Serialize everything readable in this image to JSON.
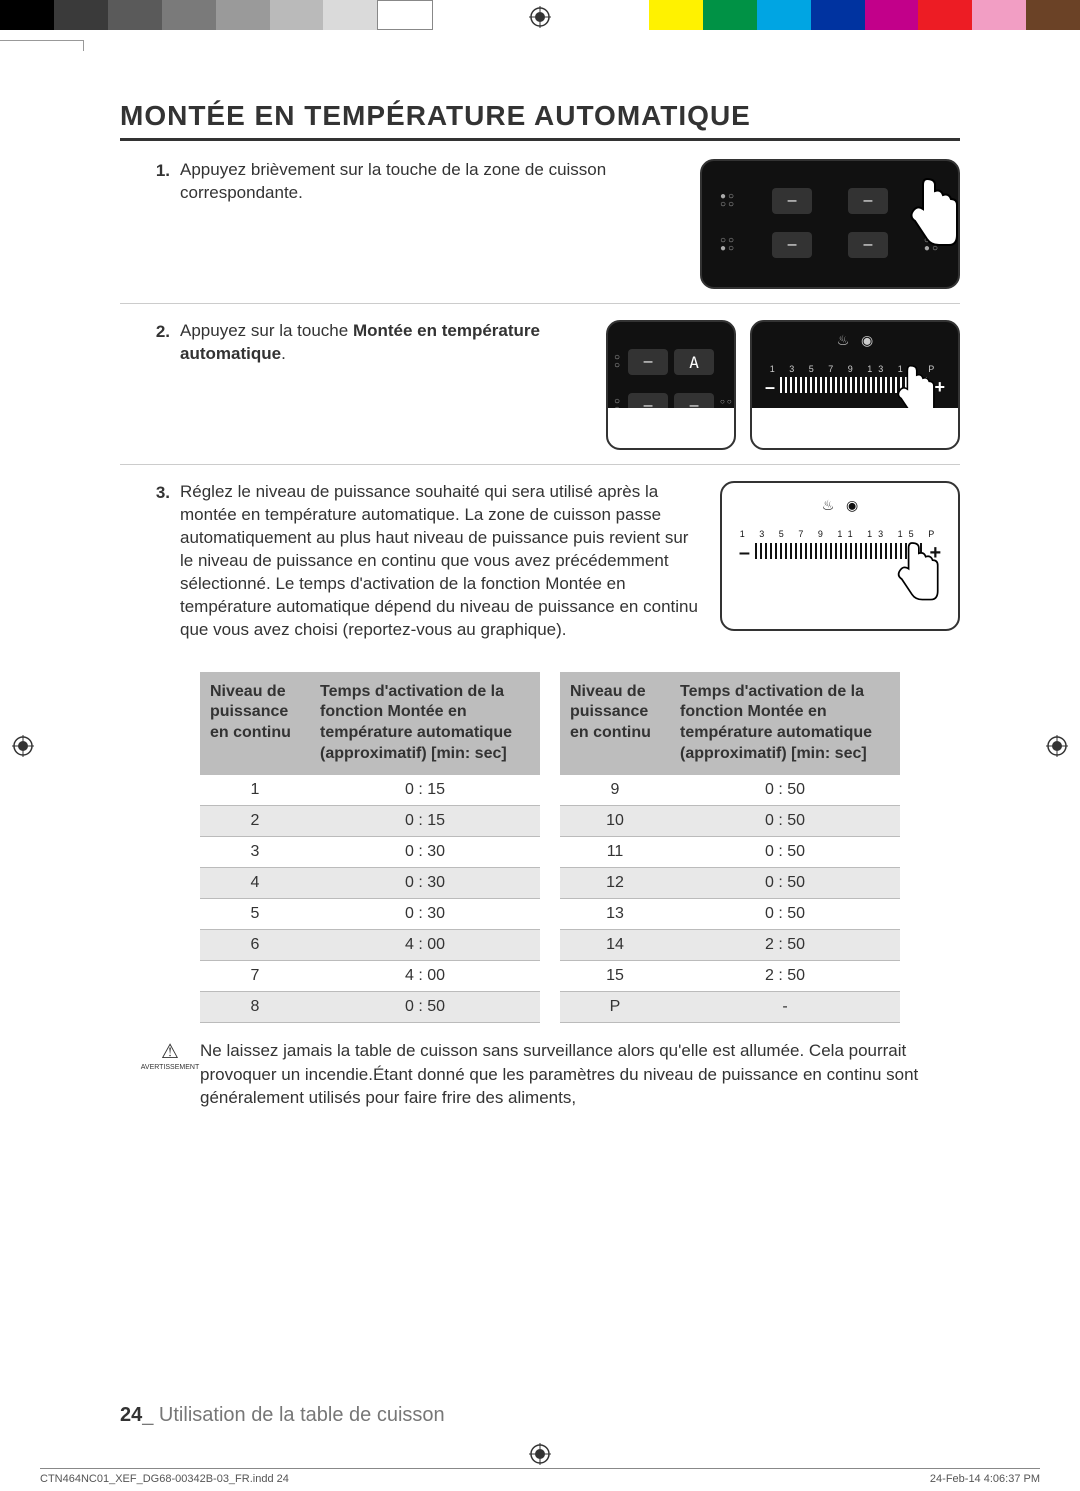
{
  "colorbar": {
    "swatches": [
      {
        "c": "#000000"
      },
      {
        "c": "#3a3a3a"
      },
      {
        "c": "#5a5a5a"
      },
      {
        "c": "#7a7a7a"
      },
      {
        "c": "#9a9a9a"
      },
      {
        "c": "#bababa"
      },
      {
        "c": "#dadada"
      },
      {
        "c": "#ffffff",
        "outline": true
      },
      {
        "c": "transparent"
      },
      {
        "c": "transparent"
      },
      {
        "c": "transparent"
      },
      {
        "c": "transparent"
      },
      {
        "c": "#fff200"
      },
      {
        "c": "#009245"
      },
      {
        "c": "#00a5e3"
      },
      {
        "c": "#0033a0"
      },
      {
        "c": "#c2008a"
      },
      {
        "c": "#ed1c24"
      },
      {
        "c": "#f29ec4"
      },
      {
        "c": "#6b4226"
      }
    ]
  },
  "title": "MONTÉE EN TEMPÉRATURE AUTOMATIQUE",
  "steps": [
    {
      "n": "1.",
      "text": "Appuyez brièvement sur la touche de la zone de cuisson correspondante."
    },
    {
      "n": "2.",
      "text_prefix": "Appuyez sur la touche ",
      "text_bold": "Montée en température automatique",
      "text_suffix": "."
    },
    {
      "n": "3.",
      "text": "Réglez le niveau de puissance souhaité qui sera utilisé après la montée en température automatique. La zone de cuisson passe automatiquement au plus haut niveau de puissance puis revient sur le niveau de puissance en continu que vous avez précédemment sélectionné. Le temps d'activation de la fonction Montée en température automatique dépend du niveau de puissance en continu que vous avez choisi (reportez-vous au graphique)."
    }
  ],
  "slider_small": {
    "nums": "1  3  5  7  9         13  15  P"
  },
  "slider_big": {
    "nums": "1  3  5  7  9  11  13  15  P"
  },
  "table": {
    "header1": "Niveau de puissance en continu",
    "header2": "Temps d'activation de la fonction Montée en température automatique (approximatif) [min: sec]",
    "left_rows": [
      {
        "a": "1",
        "b": "0 : 15"
      },
      {
        "a": "2",
        "b": "0 : 15"
      },
      {
        "a": "3",
        "b": "0 : 30"
      },
      {
        "a": "4",
        "b": "0 : 30"
      },
      {
        "a": "5",
        "b": "0 : 30"
      },
      {
        "a": "6",
        "b": "4 : 00"
      },
      {
        "a": "7",
        "b": "4 : 00"
      },
      {
        "a": "8",
        "b": "0 : 50"
      }
    ],
    "right_rows": [
      {
        "a": "9",
        "b": "0 : 50"
      },
      {
        "a": "10",
        "b": "0 : 50"
      },
      {
        "a": "11",
        "b": "0 : 50"
      },
      {
        "a": "12",
        "b": "0 : 50"
      },
      {
        "a": "13",
        "b": "0 : 50"
      },
      {
        "a": "14",
        "b": "2 : 50"
      },
      {
        "a": "15",
        "b": "2 : 50"
      },
      {
        "a": "P",
        "b": "-"
      }
    ]
  },
  "warning": {
    "label": "AVERTISSEMENT",
    "text": "Ne laissez jamais la table de cuisson sans surveillance alors qu'elle est allumée. Cela pourrait provoquer un incendie.Étant donné que les paramètres du niveau de puissance en continu sont généralement utilisés pour faire frire des aliments,"
  },
  "footer": {
    "page": "24",
    "sep": "_",
    "section": " Utilisation de la table de cuisson"
  },
  "printfoot": {
    "left": "CTN464NC01_XEF_DG68-00342B-03_FR.indd   24",
    "right": "24-Feb-14   4:06:37 PM"
  }
}
